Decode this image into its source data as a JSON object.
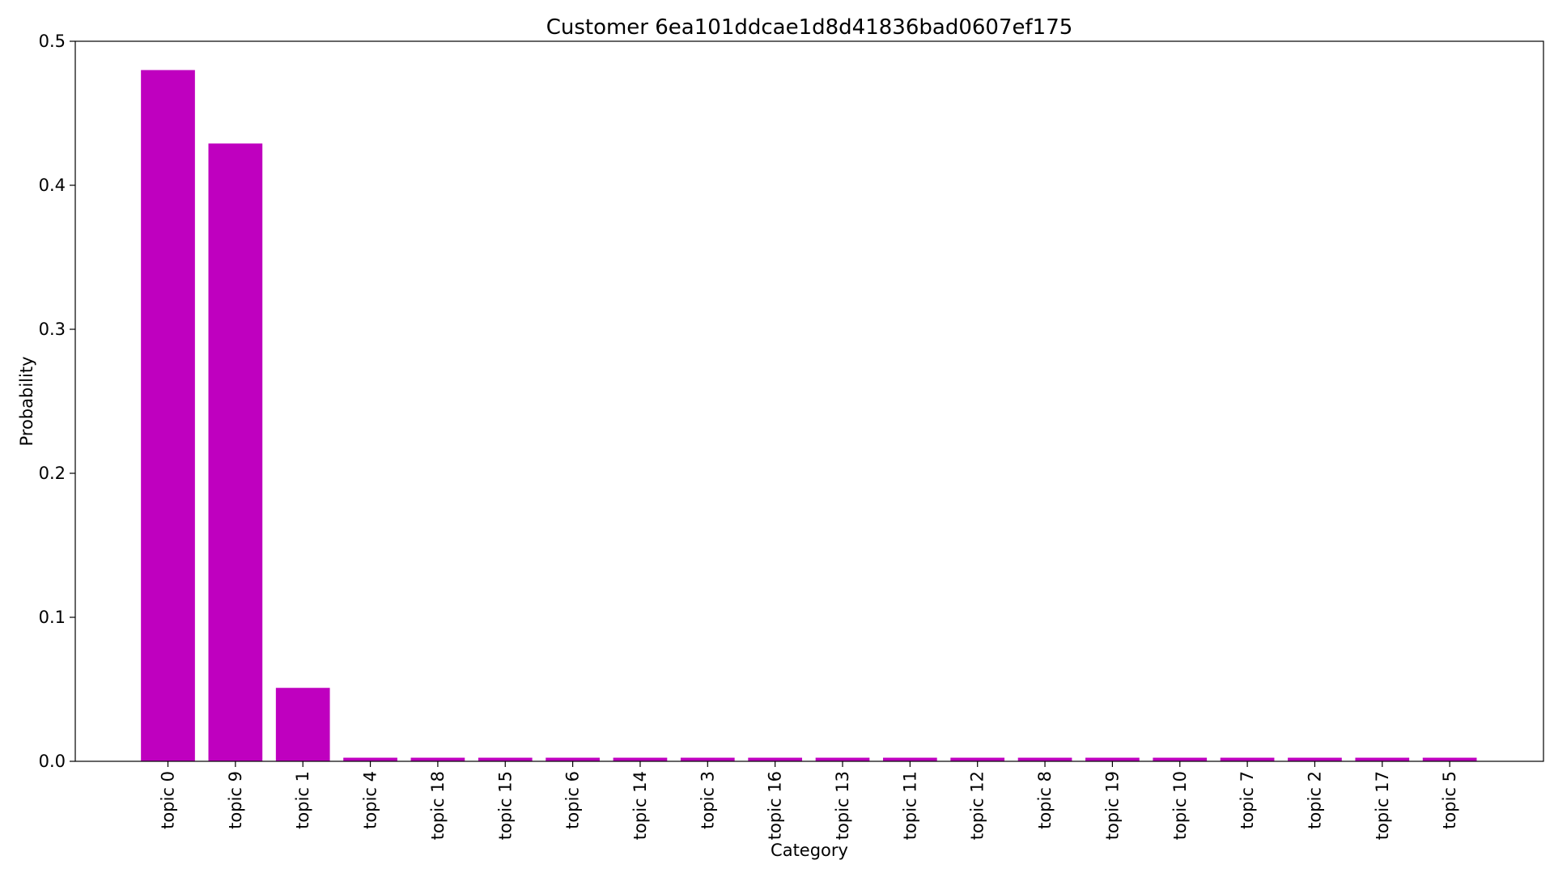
{
  "chart_data": {
    "type": "bar",
    "title": "Customer 6ea101ddcae1d8d41836bad0607ef175",
    "xlabel": "Category",
    "ylabel": "Probability",
    "categories": [
      "topic 0",
      "topic 9",
      "topic 1",
      "topic 4",
      "topic 18",
      "topic 15",
      "topic 6",
      "topic 14",
      "topic 3",
      "topic 16",
      "topic 13",
      "topic 11",
      "topic 12",
      "topic 8",
      "topic 19",
      "topic 10",
      "topic 7",
      "topic 2",
      "topic 17",
      "topic 5"
    ],
    "values": [
      0.48,
      0.429,
      0.051,
      0.0025,
      0.0025,
      0.0025,
      0.0025,
      0.0025,
      0.0025,
      0.0025,
      0.0025,
      0.0025,
      0.0025,
      0.0025,
      0.0025,
      0.0025,
      0.0025,
      0.0025,
      0.0025,
      0.0025
    ],
    "ylim": [
      0,
      0.5
    ],
    "yticks": [
      "0.0",
      "0.1",
      "0.2",
      "0.3",
      "0.4",
      "0.5"
    ],
    "bar_color": "#bf00bf",
    "grid": false,
    "legend": "none"
  }
}
